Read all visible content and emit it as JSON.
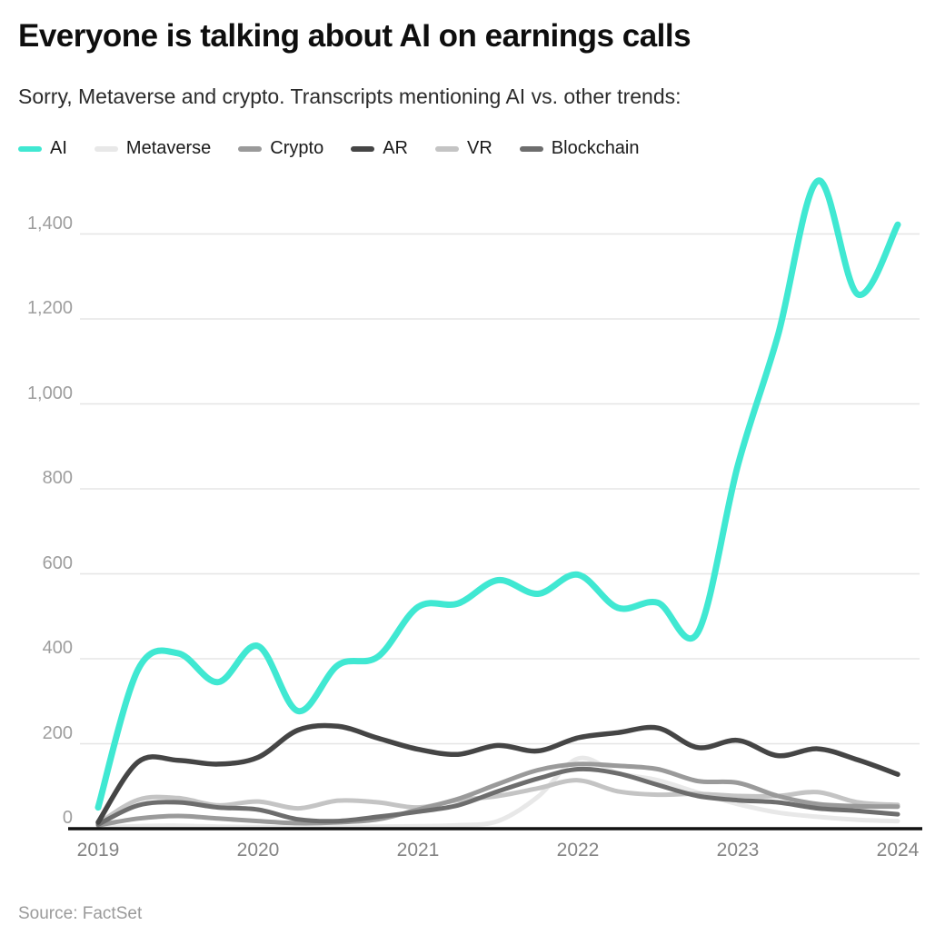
{
  "header": {
    "title": "Everyone is talking about AI on earnings calls",
    "subtitle": "Sorry, Metaverse and crypto. Transcripts mentioning AI vs. other trends:"
  },
  "legend": {
    "items": [
      {
        "label": "AI",
        "color": "#40E8D2"
      },
      {
        "label": "Metaverse",
        "color": "#E8E8E8"
      },
      {
        "label": "Crypto",
        "color": "#9A9A9A"
      },
      {
        "label": "AR",
        "color": "#454545"
      },
      {
        "label": "VR",
        "color": "#C4C4C4"
      },
      {
        "label": "Blockchain",
        "color": "#6D6D6D"
      }
    ]
  },
  "chart_data": {
    "type": "line",
    "title": "Everyone is talking about AI on earnings calls",
    "xlabel": "",
    "ylabel": "",
    "x_unit": "quarter",
    "x": [
      "2019 Q1",
      "2019 Q2",
      "2019 Q3",
      "2019 Q4",
      "2020 Q1",
      "2020 Q2",
      "2020 Q3",
      "2020 Q4",
      "2021 Q1",
      "2021 Q2",
      "2021 Q3",
      "2021 Q4",
      "2022 Q1",
      "2022 Q2",
      "2022 Q3",
      "2022 Q4",
      "2023 Q1",
      "2023 Q2",
      "2023 Q3",
      "2023 Q4",
      "2024 Q1"
    ],
    "series": [
      {
        "name": "Metaverse",
        "color": "#E8E8E8",
        "width": 5,
        "values": [
          3,
          6,
          7,
          5,
          4,
          3,
          4,
          5,
          6,
          8,
          18,
          75,
          165,
          131,
          114,
          85,
          58,
          38,
          28,
          21,
          18
        ]
      },
      {
        "name": "VR",
        "color": "#C4C4C4",
        "width": 5,
        "values": [
          12,
          68,
          72,
          55,
          64,
          48,
          66,
          62,
          50,
          67,
          77,
          95,
          114,
          88,
          80,
          82,
          77,
          77,
          86,
          62,
          56
        ]
      },
      {
        "name": "Crypto",
        "color": "#9A9A9A",
        "width": 5,
        "values": [
          8,
          24,
          30,
          24,
          18,
          13,
          15,
          22,
          45,
          70,
          105,
          138,
          152,
          148,
          140,
          112,
          108,
          77,
          58,
          53,
          52
        ]
      },
      {
        "name": "Blockchain",
        "color": "#6D6D6D",
        "width": 5,
        "values": [
          10,
          55,
          62,
          50,
          45,
          22,
          18,
          28,
          40,
          55,
          88,
          118,
          140,
          130,
          103,
          77,
          67,
          62,
          48,
          42,
          34
        ]
      },
      {
        "name": "AR",
        "color": "#454545",
        "width": 5.5,
        "values": [
          15,
          157,
          161,
          152,
          168,
          232,
          241,
          213,
          187,
          175,
          196,
          183,
          214,
          226,
          237,
          191,
          208,
          172,
          188,
          162,
          128
        ]
      },
      {
        "name": "AI",
        "color": "#40E8D2",
        "width": 7,
        "values": [
          50,
          375,
          413,
          345,
          430,
          277,
          385,
          405,
          522,
          530,
          585,
          553,
          598,
          520,
          532,
          462,
          855,
          1160,
          1525,
          1258,
          1422
        ]
      }
    ],
    "y_ticks": [
      0,
      200,
      400,
      600,
      800,
      1000,
      1200,
      1400
    ],
    "y_tick_labels": [
      "0",
      "200",
      "400",
      "600",
      "800",
      "1,000",
      "1,200",
      "1,400"
    ],
    "x_tick_labels": [
      "2019",
      "2020",
      "2021",
      "2022",
      "2023",
      "2024"
    ],
    "ylim": [
      0,
      1540
    ],
    "grid": "horizontal",
    "legend_position": "top"
  },
  "colors": {
    "grid_line": "#e5e5e5",
    "axis_line": "#111111",
    "y_tick_text": "#9e9e9e",
    "x_tick_text": "#848484",
    "title_text": "#0e0e0e",
    "subtitle_text": "#2b2b2b",
    "source_text": "#9a9a9a"
  },
  "source": "Source: FactSet"
}
